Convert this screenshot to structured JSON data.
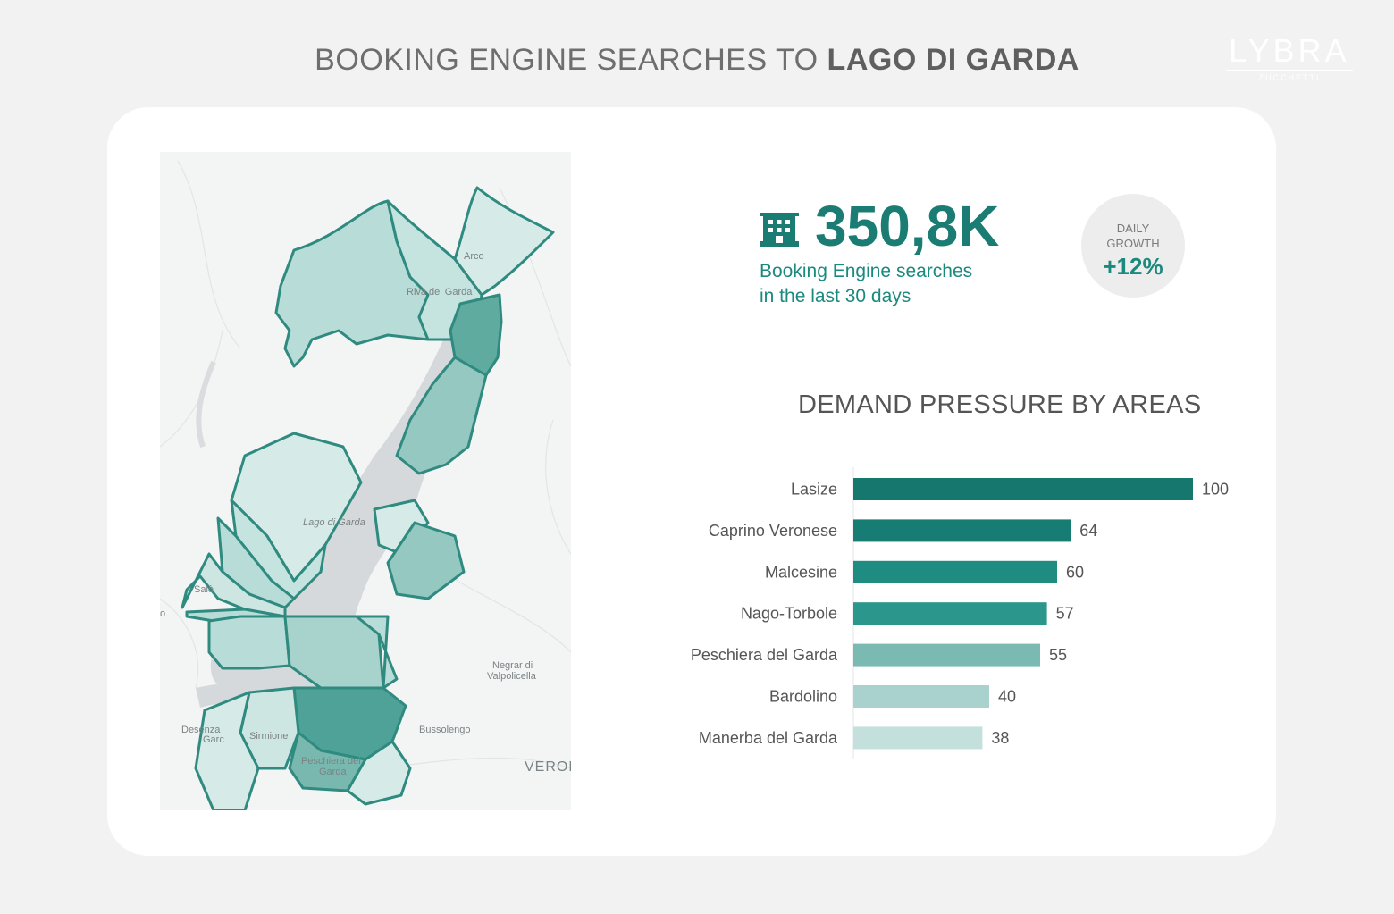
{
  "header": {
    "title_prefix": "BOOKING ENGINE SEARCHES TO ",
    "title_bold": "LAGO DI GARDA"
  },
  "logo": {
    "name": "LYBRA",
    "sub": "ZUCCHETTI"
  },
  "kpi": {
    "icon": "hotel-building-icon",
    "value": "350,8K",
    "description_line1": "Booking Engine searches",
    "description_line2": "in the last 30 days"
  },
  "growth": {
    "label_line1": "DAILY",
    "label_line2": "GROWTH",
    "value": "+12%"
  },
  "map": {
    "labels": {
      "arco": "Arco",
      "riva": "Riva del Garda",
      "lago": "Lago di Garda",
      "salo": "Salò",
      "negrar_1": "Negrar di",
      "negrar_2": "Valpolicella",
      "bussolengo": "Bussolengo",
      "desenzano_1": "Desenza",
      "desenzano_2": "Garc",
      "sirmione": "Sirmione",
      "peschiera_1": "Peschiera del",
      "peschiera_2": "Garda",
      "verona": "VERON",
      "edge": "o"
    }
  },
  "colors": {
    "accent": "#1a7c73",
    "region_stroke": "#2f8a80",
    "lake": "#d5d9dc"
  },
  "chart_data": {
    "type": "bar",
    "orientation": "horizontal",
    "title": "DEMAND PRESSURE BY AREAS",
    "categories": [
      "Lasize",
      "Caprino Veronese",
      "Malcesine",
      "Nago-Torbole",
      "Peschiera del Garda",
      "Bardolino",
      "Manerba del Garda"
    ],
    "values": [
      100,
      64,
      60,
      57,
      55,
      40,
      38
    ],
    "colors": [
      "#16776f",
      "#177d74",
      "#1f8c82",
      "#2a968c",
      "#7bb9b3",
      "#a9d1cd",
      "#c3e0dd"
    ],
    "xlim": [
      0,
      100
    ],
    "grid": false,
    "legend": "none"
  }
}
